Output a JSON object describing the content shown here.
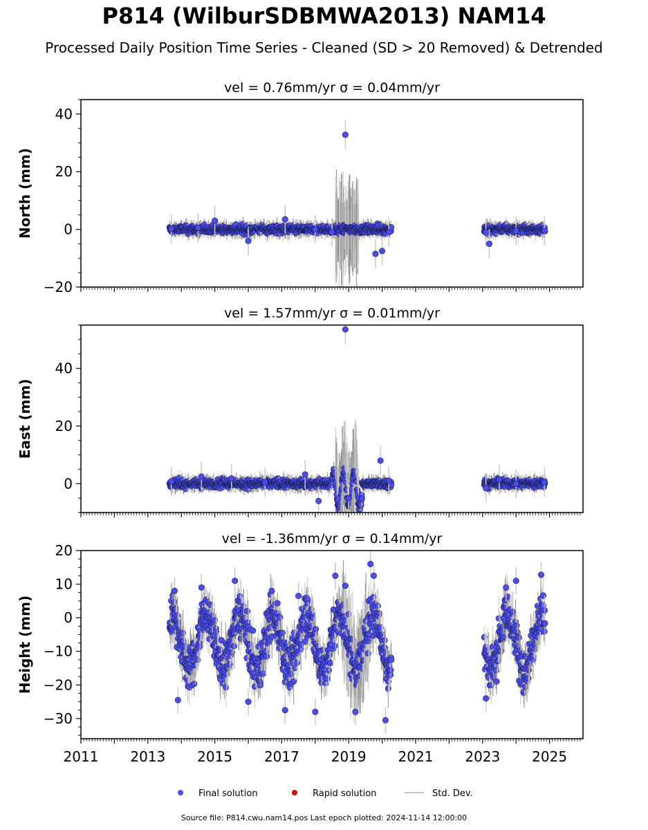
{
  "title": "P814 (WilburSDBMWA2013) NAM14",
  "subtitle": "Processed Daily Position Time Series - Cleaned (SD > 20 Removed) & Detrended",
  "source_line": "Source file: P814.cwu.nam14.pos  Last epoch plotted: 2024-11-14 12:00:00",
  "legend": {
    "final": "Final solution",
    "rapid": "Rapid solution",
    "std": "Std. Dev.",
    "placement": "bottom-center"
  },
  "colors": {
    "final": "#4a4ef2",
    "rapid": "#e00000",
    "std": "#c8c8c8",
    "std_dark": "#8a8a8a"
  },
  "chart_data": [
    {
      "type": "scatter",
      "panel": "north",
      "title": "vel = 0.76mm/yr   σ = 0.04mm/yr",
      "ylabel": "North (mm)",
      "xlim": [
        2011,
        2026
      ],
      "ylim": [
        -20,
        45
      ],
      "yticks": [
        -20,
        0,
        20,
        40
      ],
      "xticks": [
        2011,
        2013,
        2015,
        2017,
        2019,
        2021,
        2023,
        2025
      ],
      "segments": [
        [
          2013.65,
          2020.28
        ],
        [
          2023.05,
          2024.87
        ]
      ],
      "grid": false,
      "series": [
        {
          "name": "Final solution",
          "points": [
            [
              2013.7,
              0.2
            ],
            [
              2014.5,
              0.5
            ],
            [
              2015.0,
              3.0
            ],
            [
              2016.0,
              -4.0
            ],
            [
              2017.1,
              3.5
            ],
            [
              2018.0,
              0.0
            ],
            [
              2018.5,
              -1.0
            ],
            [
              2018.9,
              32.8
            ],
            [
              2019.8,
              -8.5
            ],
            [
              2020.0,
              -7.5
            ],
            [
              2020.2,
              -1.0
            ],
            [
              2023.1,
              -1.0
            ],
            [
              2023.2,
              -5.0
            ],
            [
              2024.0,
              -0.5
            ],
            [
              2024.85,
              -0.5
            ]
          ]
        }
      ]
    },
    {
      "type": "scatter",
      "panel": "east",
      "title": "vel = 1.57mm/yr   σ = 0.01mm/yr",
      "ylabel": "East (mm)",
      "xlim": [
        2011,
        2026
      ],
      "ylim": [
        -10,
        55
      ],
      "yticks": [
        0,
        20,
        40
      ],
      "xticks": [
        2011,
        2013,
        2015,
        2017,
        2019,
        2021,
        2023,
        2025
      ],
      "segments": [
        [
          2013.65,
          2020.28
        ],
        [
          2023.05,
          2024.87
        ]
      ],
      "grid": false,
      "series": [
        {
          "name": "Final solution",
          "points": [
            [
              2013.7,
              0.8
            ],
            [
              2014.6,
              2.5
            ],
            [
              2015.5,
              1.8
            ],
            [
              2016.5,
              0.5
            ],
            [
              2017.7,
              3.2
            ],
            [
              2018.1,
              -6.0
            ],
            [
              2018.9,
              53.5
            ],
            [
              2019.0,
              -5.0
            ],
            [
              2019.95,
              8.0
            ],
            [
              2020.2,
              1.0
            ],
            [
              2023.1,
              -1.5
            ],
            [
              2023.5,
              1.5
            ],
            [
              2024.0,
              0.0
            ],
            [
              2024.85,
              0.5
            ]
          ]
        }
      ]
    },
    {
      "type": "scatter",
      "panel": "height",
      "title": "vel = -1.36mm/yr   σ = 0.14mm/yr",
      "ylabel": "Height (mm)",
      "xlim": [
        2011,
        2026
      ],
      "ylim": [
        -36,
        20
      ],
      "yticks": [
        -30,
        -20,
        -10,
        0,
        10,
        20
      ],
      "xticks": [
        2011,
        2013,
        2015,
        2017,
        2019,
        2021,
        2023,
        2025
      ],
      "xticklabels": [
        "2011",
        "2013",
        "2015",
        "2017",
        "2019",
        "2021",
        "2023",
        "2025"
      ],
      "segments": [
        [
          2013.65,
          2020.28
        ],
        [
          2023.05,
          2024.87
        ]
      ],
      "grid": false,
      "series": [
        {
          "name": "Final solution",
          "points": [
            [
              2013.8,
              8.0
            ],
            [
              2013.9,
              -24.5
            ],
            [
              2014.6,
              9.0
            ],
            [
              2015.6,
              11.0
            ],
            [
              2016.0,
              -25.0
            ],
            [
              2016.7,
              8.0
            ],
            [
              2017.1,
              -27.5
            ],
            [
              2017.5,
              6.5
            ],
            [
              2018.0,
              -28.0
            ],
            [
              2018.6,
              12.5
            ],
            [
              2018.9,
              9.5
            ],
            [
              2019.2,
              -28.0
            ],
            [
              2019.65,
              16.0
            ],
            [
              2019.75,
              12.5
            ],
            [
              2020.1,
              -30.5
            ],
            [
              2023.1,
              -24.0
            ],
            [
              2023.7,
              9.0
            ],
            [
              2024.0,
              11.0
            ],
            [
              2024.75,
              12.8
            ]
          ]
        }
      ]
    }
  ]
}
